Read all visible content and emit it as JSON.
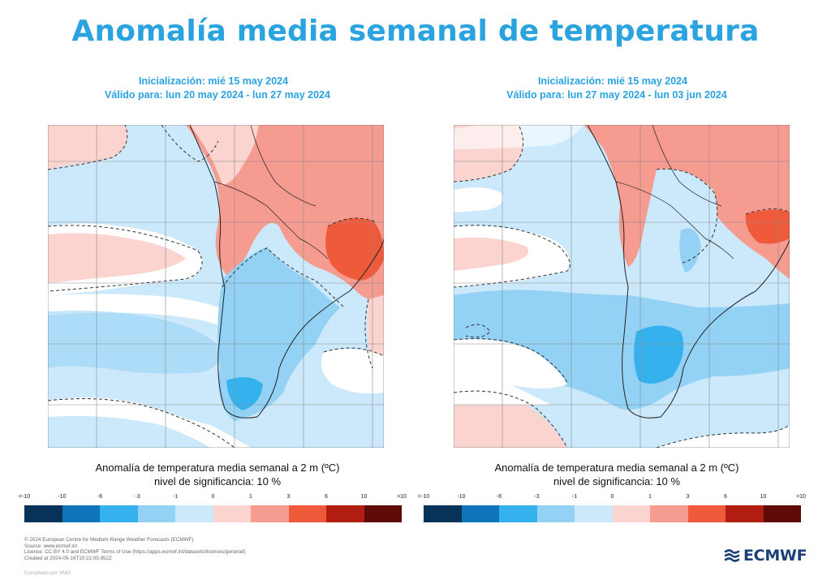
{
  "title": "Anomalía media semanal de temperatura",
  "panels": [
    {
      "init": "Inicialización: mié 15 may 2024",
      "valid": "Válido para: lun 20 may 2024 - lun 27 may 2024",
      "caption": "Anomalía de temperatura media semanal a 2 m (ºC)",
      "significance": "nivel de significancia: 10 %"
    },
    {
      "init": "Inicialización: mié 15 may 2024",
      "valid": "Válido para: lun 27 may 2024 - lun 03 jun 2024",
      "caption": "Anomalía de temperatura media semanal a 2 m (ºC)",
      "significance": "nivel de significancia: 10 %"
    }
  ],
  "colorbar": {
    "ticks": [
      "<-10",
      "-10",
      "-6",
      "-3",
      "-1",
      "0",
      "1",
      "3",
      "6",
      "10",
      ">10"
    ],
    "colors": [
      "#083358",
      "#0f75bb",
      "#35b2ee",
      "#93d1f5",
      "#cbe9fb",
      "#fbd3cf",
      "#f59b8f",
      "#ef5a3a",
      "#b11d10",
      "#5e0a06"
    ]
  },
  "footer": [
    "© 2024 European Centre for Medium-Range Weather Forecasts (ECMWF)",
    "Source: www.ecmwf.int",
    "Licence: CC BY 4.0 and ECMWF Terms of Use (https://apps.ecmwf.int/datasets/licences/general/)",
    "Created at 2024-05-16T10:22:05.952Z"
  ],
  "compiled": "Compilado por VMO",
  "logo_text": "ECMWF",
  "logo_color": "#1b3f77",
  "title_color": "#2aa3df"
}
